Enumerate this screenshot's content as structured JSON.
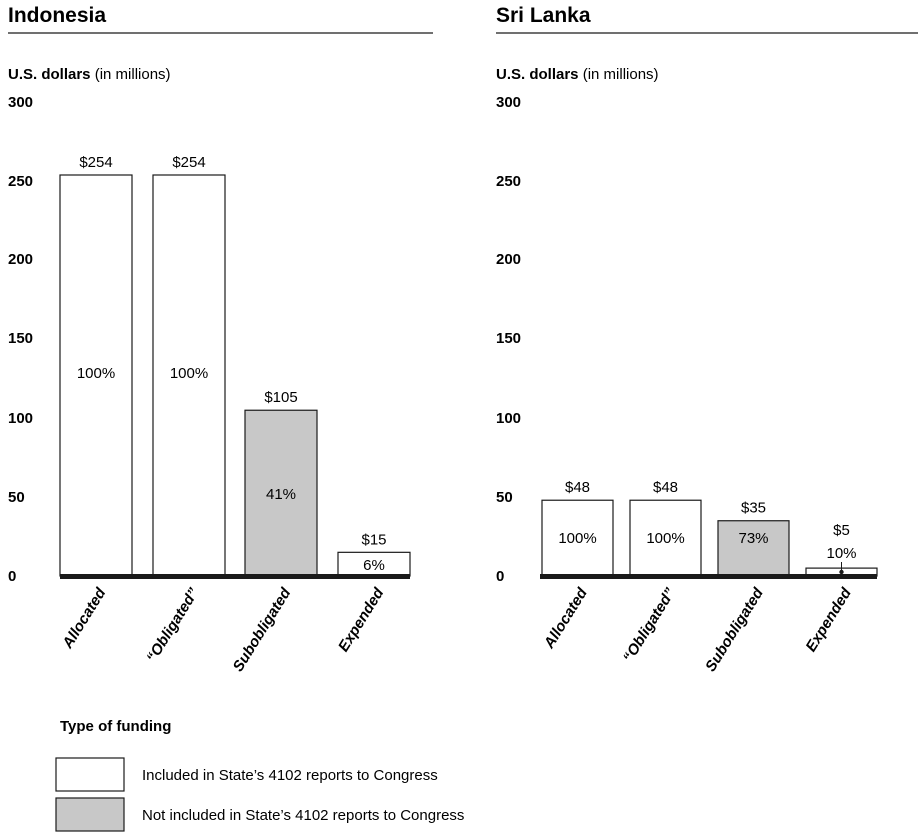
{
  "colors": {
    "included": "#ffffff",
    "not_included": "#c8c8c8",
    "axis": "#1a1a1a"
  },
  "legend": {
    "title": "Type of funding",
    "items": [
      {
        "label": "Included in State’s 4102 reports to Congress",
        "color": "#ffffff"
      },
      {
        "label": "Not included in State’s 4102 reports to Congress",
        "color": "#c8c8c8"
      }
    ]
  },
  "chart_data": [
    {
      "type": "bar",
      "title": "Indonesia",
      "unit_bold": "U.S. dollars",
      "unit_rest": " (in millions)",
      "ylim": [
        0,
        300
      ],
      "yticks": [
        "0",
        "50",
        "100",
        "150",
        "200",
        "250",
        "300"
      ],
      "categories": [
        "Allocated",
        "“Obligated”",
        "Subobligated",
        "Expended"
      ],
      "values": [
        254,
        254,
        105,
        15
      ],
      "value_labels": [
        "$254",
        "$254",
        "$105",
        "$15"
      ],
      "percent_labels": [
        "100%",
        "100%",
        "41%",
        "6%"
      ],
      "included_in_4102": [
        true,
        true,
        false,
        true
      ],
      "grid": false
    },
    {
      "type": "bar",
      "title": "Sri Lanka",
      "unit_bold": "U.S. dollars",
      "unit_rest": " (in millions)",
      "ylim": [
        0,
        300
      ],
      "yticks": [
        "0",
        "50",
        "100",
        "150",
        "200",
        "250",
        "300"
      ],
      "categories": [
        "Allocated",
        "“Obligated”",
        "Subobligated",
        "Expended"
      ],
      "values": [
        48,
        48,
        35,
        5
      ],
      "value_labels": [
        "$48",
        "$48",
        "$35",
        "$5"
      ],
      "percent_labels": [
        "100%",
        "100%",
        "73%",
        "10%"
      ],
      "included_in_4102": [
        true,
        true,
        false,
        true
      ],
      "grid": false
    }
  ]
}
